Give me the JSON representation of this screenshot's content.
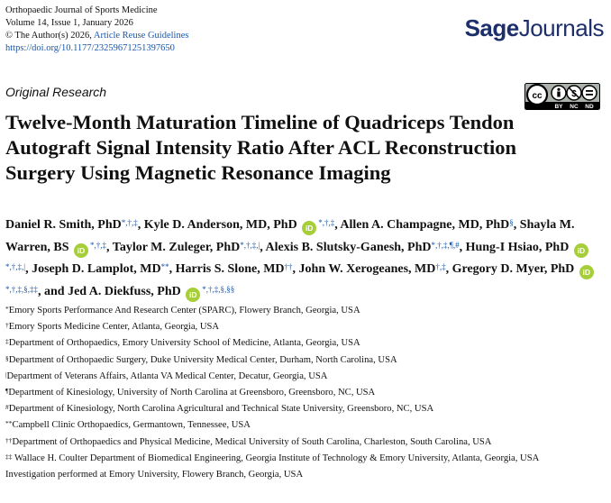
{
  "journal": {
    "name": "Orthopaedic Journal of Sports Medicine",
    "volume_issue": "Volume 14, Issue 1, January 2026",
    "copyright": "© The Author(s) 2026,",
    "reuse_link": "Article Reuse Guidelines",
    "doi": "https://doi.org/10.1177/23259671251397650"
  },
  "brand": {
    "part1": "Sage",
    "part2": "Journals"
  },
  "license": {
    "by": "BY",
    "nc": "NC",
    "nd": "ND"
  },
  "section_label": "Original Research",
  "title": "Twelve-Month Maturation Timeline of Quadriceps Tendon Autograft Signal Intensity Ratio After ACL Reconstruction Surgery Using Magnetic Resonance Imaging",
  "orcid_text": "iD",
  "authors": [
    {
      "name": "Daniel R. Smith, PhD",
      "marks": "*,†,‡",
      "orcid": false,
      "sep": ", "
    },
    {
      "name": "Kyle D. Anderson, MD, PhD",
      "marks": "*,†,‡",
      "orcid": true,
      "sep": ", "
    },
    {
      "name": "Allen A. Champagne, MD, PhD",
      "marks": "§",
      "orcid": false,
      "sep": ", "
    },
    {
      "name": "Shayla M. Warren, BS",
      "marks": "*,†,‡",
      "orcid": true,
      "sep": ", "
    },
    {
      "name": "Taylor M. Zuleger, PhD",
      "marks": "*,†,‡,|",
      "orcid": false,
      "sep": ", "
    },
    {
      "name": "Alexis B. Slutsky-Ganesh, PhD",
      "marks": "*,†,‡,¶,#",
      "orcid": false,
      "sep": ", "
    },
    {
      "name": "Hung-I Hsiao, PhD",
      "marks": "*,†,‡,|",
      "orcid": true,
      "sep": ", "
    },
    {
      "name": "Joseph D. Lamplot, MD",
      "marks": "**",
      "orcid": false,
      "sep": ", "
    },
    {
      "name": "Harris S. Slone, MD",
      "marks": "††",
      "orcid": false,
      "sep": ", "
    },
    {
      "name": "John W. Xerogeanes, MD",
      "marks": "†,‡",
      "orcid": false,
      "sep": ", "
    },
    {
      "name": "Gregory D. Myer, PhD",
      "marks": "*,†,‡,§,‡‡",
      "orcid": true,
      "sep": ", and "
    },
    {
      "name": "Jed A. Diekfuss, PhD",
      "marks": "*,†,‡,§,§§",
      "orcid": true,
      "sep": ""
    }
  ],
  "affiliations": [
    {
      "mark": "*",
      "text": "Emory Sports Performance And Research Center (SPARC), Flowery Branch, Georgia, USA"
    },
    {
      "mark": "†",
      "text": "Emory Sports Medicine Center, Atlanta, Georgia, USA"
    },
    {
      "mark": "‡",
      "text": "Department of Orthopaedics, Emory University School of Medicine, Atlanta, Georgia, USA"
    },
    {
      "mark": "§",
      "text": "Department of Orthopaedic Surgery, Duke University Medical Center, Durham, North Carolina, USA"
    },
    {
      "mark": "|",
      "text": "Department of Veterans Affairs, Atlanta VA Medical Center, Decatur, Georgia, USA"
    },
    {
      "mark": "¶",
      "text": "Department of Kinesiology, University of North Carolina at Greensboro, Greensboro, NC, USA"
    },
    {
      "mark": "#",
      "text": "Department of Kinesiology, North Carolina Agricultural and Technical State University, Greensboro, NC, USA"
    },
    {
      "mark": "**",
      "text": "Campbell Clinic Orthopaedics, Germantown, Tennessee, USA"
    },
    {
      "mark": "††",
      "text": "Department of Orthopaedics and Physical Medicine, Medical University of South Carolina, Charleston, South Carolina, USA"
    },
    {
      "mark": "‡‡",
      "text": " Wallace H. Coulter Department of Biomedical Engineering, Georgia Institute of Technology & Emory University, Atlanta, Georgia, USA"
    }
  ],
  "investigation_note": "Investigation performed at Emory University, Flowery Branch, Georgia, USA"
}
